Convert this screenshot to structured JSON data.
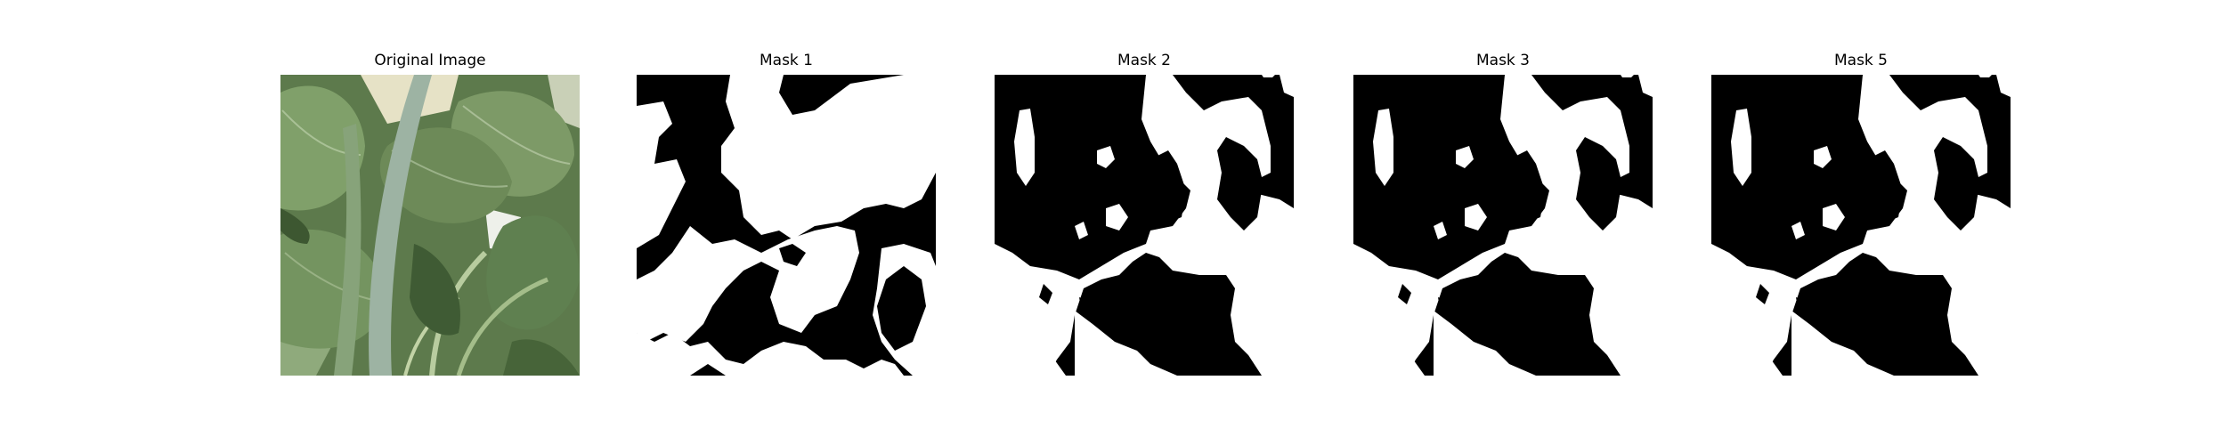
{
  "panels": [
    {
      "title": "Original Image",
      "kind": "photo",
      "subject": "green leaves"
    },
    {
      "title": "Mask 1",
      "kind": "mask"
    },
    {
      "title": "Mask 2",
      "kind": "mask"
    },
    {
      "title": "Mask 3",
      "kind": "mask"
    },
    {
      "title": "Mask 5",
      "kind": "mask"
    }
  ],
  "colors": {
    "background": "#ffffff",
    "mask_foreground": "#ffffff",
    "mask_background": "#000000",
    "leaf_dark": "#4a6b3c",
    "leaf_mid": "#6f8f5e",
    "leaf_light": "#9fb38e"
  }
}
